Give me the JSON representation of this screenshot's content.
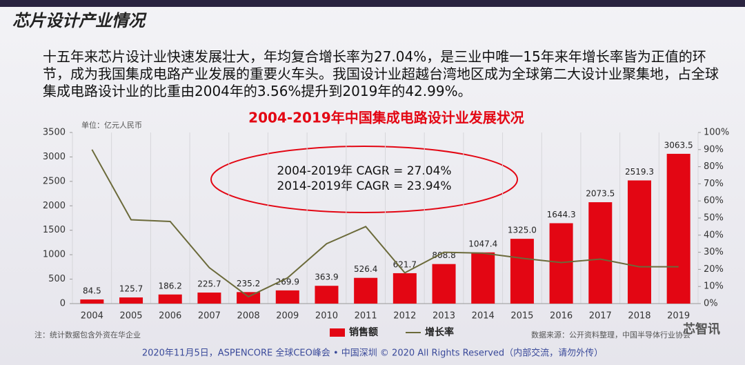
{
  "slide_title": "芯片设计产业情况",
  "paragraph": "十五年来芯片设计业快速发展壮大，年均复合增长率为27.04%，是三业中唯一15年来年增长率皆为正值的环节，成为我国集成电路产业发展的重要火车头。我国设计业超越台湾地区成为全球第二大设计业聚集地，占全球集成电路设计业的比重由2004年的3.56%提升到2019年的42.99%。",
  "footer": "2020年11月5日，ASPENCORE 全球CEO峰会 • 中国深圳 © 2020 All Rights Reserved（内部交流，请勿外传）",
  "watermark": "芯智讯",
  "chart_data": {
    "type": "bar",
    "title": "2004-2019年中国集成电路设计业发展状况",
    "unit_label": "单位：亿元人民币",
    "annotations": [
      "2004-2019年  CAGR = 27.04%",
      "2014-2019年  CAGR = 23.94%"
    ],
    "note": "注：统计数据包含外资在华企业",
    "source": "数据来源：公开资料整理，中国半导体行业协会",
    "categories": [
      "2004",
      "2005",
      "2006",
      "2007",
      "2008",
      "2009",
      "2010",
      "2011",
      "2012",
      "2013",
      "2014",
      "2015",
      "2016",
      "2017",
      "2018",
      "2019"
    ],
    "series": [
      {
        "name": "销售额",
        "type": "bar",
        "color": "#e30613",
        "values": [
          84.5,
          125.7,
          186.2,
          225.7,
          235.2,
          269.9,
          363.9,
          526.4,
          621.7,
          808.8,
          1047.4,
          1325,
          1644.3,
          2073.5,
          2519.3,
          3063.5
        ],
        "value_labels": [
          "84.5",
          "125.7",
          "186.2",
          "225.7",
          "235.2",
          "269.9",
          "363.9",
          "526.4",
          "621.7",
          "808.8",
          "1047.4",
          "1325.0",
          "1644.3",
          "2073.5",
          "2519.3",
          "3063.5"
        ]
      },
      {
        "name": "增长率",
        "type": "line",
        "axis": "y2",
        "color": "#6b6a3a",
        "values": [
          90,
          49,
          48,
          21,
          4,
          15,
          35,
          45,
          18,
          30,
          29.5,
          26.5,
          24,
          26,
          21.5,
          21.5
        ]
      }
    ],
    "ylim": [
      0,
      3500
    ],
    "yticks": [
      0,
      500,
      1000,
      1500,
      2000,
      2500,
      3000,
      3500
    ],
    "y2lim": [
      0,
      100
    ],
    "y2ticks": [
      {
        "value": 0,
        "label": "0%"
      },
      {
        "value": 10,
        "label": "10%"
      },
      {
        "value": 20,
        "label": "20%"
      },
      {
        "value": 30,
        "label": "30%"
      },
      {
        "value": 40,
        "label": "40%"
      },
      {
        "value": 50,
        "label": "50%"
      },
      {
        "value": 60,
        "label": "60%"
      },
      {
        "value": 70,
        "label": "70%"
      },
      {
        "value": 80,
        "label": "80%"
      },
      {
        "value": 90,
        "label": "90%"
      },
      {
        "value": 100,
        "label": "100%"
      }
    ],
    "legend": "bottom"
  }
}
